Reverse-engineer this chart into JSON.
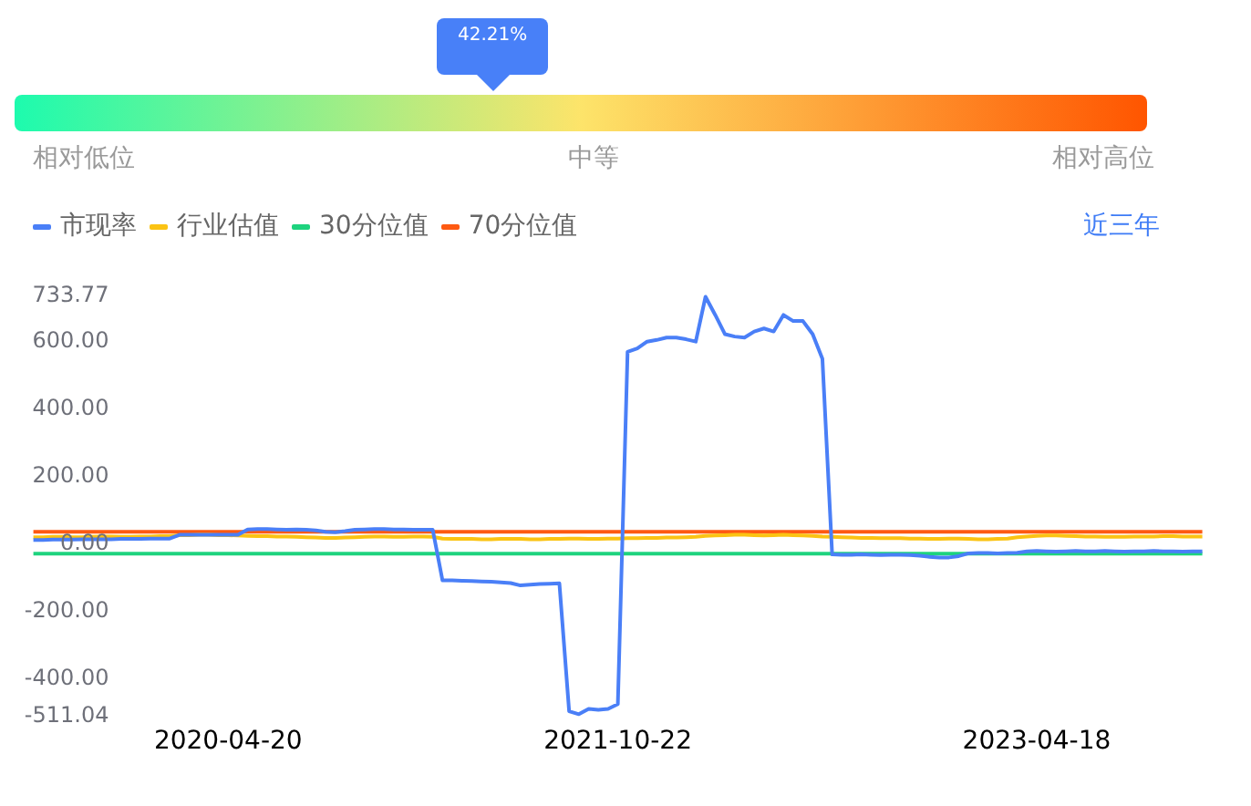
{
  "chart_data": [
    {
      "type": "other",
      "values": [
        42.21
      ],
      "value_labels": [
        "42.21%"
      ],
      "color": "#4880f8",
      "annotations": [
        "相对低位",
        "中等",
        "相对高位"
      ]
    },
    {
      "type": "line",
      "categories": [
        null,
        null,
        null,
        null,
        null,
        null,
        null,
        null,
        null,
        null,
        null,
        null,
        null,
        null,
        null,
        null,
        null,
        null,
        null,
        null,
        "2020-04-20",
        null,
        null,
        null,
        null,
        null,
        null,
        null,
        null,
        null,
        null,
        null,
        null,
        null,
        null,
        null,
        null,
        null,
        null,
        null,
        null,
        null,
        null,
        null,
        null,
        null,
        null,
        null,
        null,
        null,
        null,
        null,
        null,
        null,
        null,
        null,
        null,
        null,
        null,
        null,
        "2021-10-22",
        null,
        null,
        null,
        null,
        null,
        null,
        null,
        null,
        null,
        null,
        null,
        null,
        null,
        null,
        null,
        null,
        null,
        null,
        null,
        null,
        null,
        null,
        null,
        null,
        null,
        null,
        null,
        null,
        null,
        null,
        null,
        null,
        null,
        null,
        null,
        null,
        null,
        null,
        null,
        null,
        null,
        null,
        "2023-04-18",
        null,
        null,
        null,
        null,
        null,
        null,
        null,
        null,
        null,
        null,
        null,
        null,
        null,
        null,
        null,
        null,
        null
      ],
      "series": [
        {
          "name": "市现率",
          "color": "#4a7ff7",
          "values": [
            12,
            12,
            13,
            13,
            13,
            14,
            14,
            14,
            14,
            15,
            15,
            15,
            16,
            16,
            16,
            27,
            27,
            27,
            27,
            27,
            27,
            27,
            43,
            44,
            44,
            43,
            42,
            43,
            42,
            40,
            36,
            35,
            38,
            42,
            43,
            44,
            44,
            43,
            43,
            42,
            42,
            42,
            -108,
            -108,
            -109,
            -110,
            -111,
            -112,
            -114,
            -116,
            -123,
            -121,
            -119,
            -118,
            -117,
            -496,
            -505,
            -489,
            -492,
            -489,
            -475,
            570,
            580,
            600,
            605,
            612,
            612,
            607,
            600,
            733,
            679,
            622,
            615,
            612,
            630,
            639,
            630,
            679,
            661,
            661,
            622,
            549,
            -31,
            -32,
            -32,
            -31,
            -32,
            -33,
            -32,
            -32,
            -33,
            -35,
            -38,
            -40,
            -40,
            -36,
            -28,
            -27,
            -27,
            -28,
            -27,
            -26,
            -22,
            -21,
            -22,
            -23,
            -22,
            -21,
            -22,
            -22,
            -21,
            -22,
            -23,
            -22,
            -22,
            -21,
            -22,
            -22,
            -23,
            -22,
            -22
          ]
        },
        {
          "name": "行业估值",
          "color": "#fbc313",
          "values": [
            20,
            20,
            21,
            21,
            20,
            20,
            21,
            22,
            22,
            21,
            21,
            22,
            22,
            23,
            23,
            26,
            26,
            27,
            27,
            26,
            26,
            25,
            24,
            23,
            23,
            22,
            22,
            21,
            20,
            19,
            18,
            18,
            19,
            20,
            21,
            22,
            22,
            21,
            21,
            22,
            22,
            21,
            16,
            15,
            15,
            15,
            14,
            14,
            15,
            15,
            15,
            14,
            14,
            15,
            15,
            16,
            16,
            15,
            15,
            16,
            16,
            17,
            17,
            18,
            18,
            19,
            19,
            20,
            21,
            24,
            25,
            26,
            27,
            27,
            26,
            25,
            26,
            27,
            26,
            25,
            24,
            22,
            21,
            20,
            19,
            18,
            18,
            17,
            17,
            17,
            16,
            16,
            15,
            15,
            16,
            16,
            15,
            14,
            14,
            15,
            16,
            20,
            22,
            24,
            25,
            25,
            24,
            23,
            22,
            22,
            21,
            21,
            21,
            22,
            22,
            22,
            23,
            23,
            22,
            22,
            22
          ]
        },
        {
          "name": "30分位值",
          "color": "#1ed37e",
          "values": [
            -29,
            -29,
            -29,
            -29,
            -29,
            -29,
            -29,
            -29,
            -29,
            -29,
            -29,
            -29,
            -29,
            -29,
            -29,
            -29,
            -29,
            -29,
            -29,
            -29,
            -29,
            -29,
            -29,
            -29,
            -29,
            -29,
            -29,
            -29,
            -29,
            -29,
            -29,
            -29,
            -29,
            -29,
            -29,
            -29,
            -29,
            -29,
            -29,
            -29,
            -29,
            -29,
            -29,
            -29,
            -29,
            -29,
            -29,
            -29,
            -29,
            -29,
            -29,
            -29,
            -29,
            -29,
            -29,
            -29,
            -29,
            -29,
            -29,
            -29,
            -29,
            -29,
            -29,
            -29,
            -29,
            -29,
            -29,
            -29,
            -29,
            -29,
            -29,
            -29,
            -29,
            -29,
            -29,
            -29,
            -29,
            -29,
            -29,
            -29,
            -29,
            -29,
            -29,
            -29,
            -29,
            -29,
            -29,
            -29,
            -29,
            -29,
            -29,
            -29,
            -29,
            -29,
            -29,
            -29,
            -29,
            -29,
            -29,
            -29,
            -29,
            -29,
            -29,
            -29,
            -29,
            -29,
            -29,
            -29,
            -29,
            -29,
            -29,
            -29,
            -29,
            -29,
            -29,
            -29,
            -29,
            -29,
            -29,
            -29,
            -29
          ]
        },
        {
          "name": "70分位值",
          "color": "#fe5a12",
          "values": [
            36,
            36,
            36,
            36,
            36,
            36,
            36,
            36,
            36,
            36,
            36,
            36,
            36,
            36,
            36,
            36,
            36,
            36,
            36,
            36,
            36,
            36,
            36,
            36,
            36,
            36,
            36,
            36,
            36,
            36,
            36,
            36,
            36,
            36,
            36,
            36,
            36,
            36,
            36,
            36,
            36,
            36,
            36,
            36,
            36,
            36,
            36,
            36,
            36,
            36,
            36,
            36,
            36,
            36,
            36,
            36,
            36,
            36,
            36,
            36,
            36,
            36,
            36,
            36,
            36,
            36,
            36,
            36,
            36,
            36,
            36,
            36,
            36,
            36,
            36,
            36,
            36,
            36,
            36,
            36,
            36,
            36,
            36,
            36,
            36,
            36,
            36,
            36,
            36,
            36,
            36,
            36,
            36,
            36,
            36,
            36,
            36,
            36,
            36,
            36,
            36,
            36,
            36,
            36,
            36,
            36,
            36,
            36,
            36,
            36,
            36,
            36,
            36,
            36,
            36,
            36,
            36,
            36,
            36,
            36,
            36
          ]
        }
      ],
      "ylim": [
        -511.04,
        733.77
      ],
      "yticks": [
        733.77,
        {
          "value": 600,
          "label": "600.00"
        },
        {
          "value": 400,
          "label": "400.00"
        },
        {
          "value": 200,
          "label": "200.00"
        },
        {
          "value": 0,
          "label": "0.00"
        },
        {
          "value": -200,
          "label": "-200.00"
        },
        {
          "value": -400,
          "label": "-400.00"
        },
        -511.04
      ],
      "legend": "top left",
      "annotations": [
        "近三年"
      ]
    }
  ]
}
